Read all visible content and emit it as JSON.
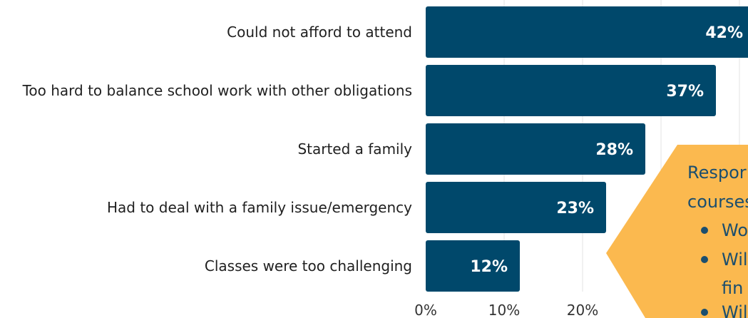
{
  "chart_data": {
    "type": "bar",
    "orientation": "horizontal",
    "categories": [
      "Could not afford to attend",
      "Too hard to balance school work with other obligations",
      "Started a family",
      "Had to deal with a family issue/emergency",
      "Classes were too challenging"
    ],
    "values": [
      42,
      37,
      28,
      23,
      12
    ],
    "value_labels": [
      "42%",
      "37%",
      "28%",
      "23%",
      "12%"
    ],
    "x_ticks": [
      "0%",
      "10%",
      "20%"
    ],
    "xlim": [
      0,
      45
    ],
    "grid": true,
    "bar_color": "#00486b"
  },
  "callout": {
    "color": "#fbb94f",
    "text_color": "#1b4e6e",
    "lines": [
      "Respor",
      "courses"
    ],
    "bullets": [
      "Wo",
      "Wil",
      "fin",
      "Wil"
    ]
  }
}
